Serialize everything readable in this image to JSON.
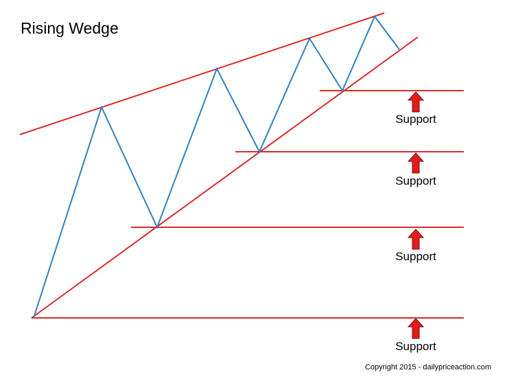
{
  "title": "Rising Wedge",
  "support_labels": [
    "Support",
    "Support",
    "Support",
    "Support"
  ],
  "copyright": "Copyright 2015 - dailypriceaction.com",
  "colors": {
    "trendline": "#d62b2b",
    "price": "#2f7fbf",
    "support_line": "#d62b2b",
    "arrow_fill": "#e31b1b",
    "arrow_stroke": "#7a0d0d"
  },
  "icons": {
    "support_arrow": "up-arrow-icon"
  }
}
